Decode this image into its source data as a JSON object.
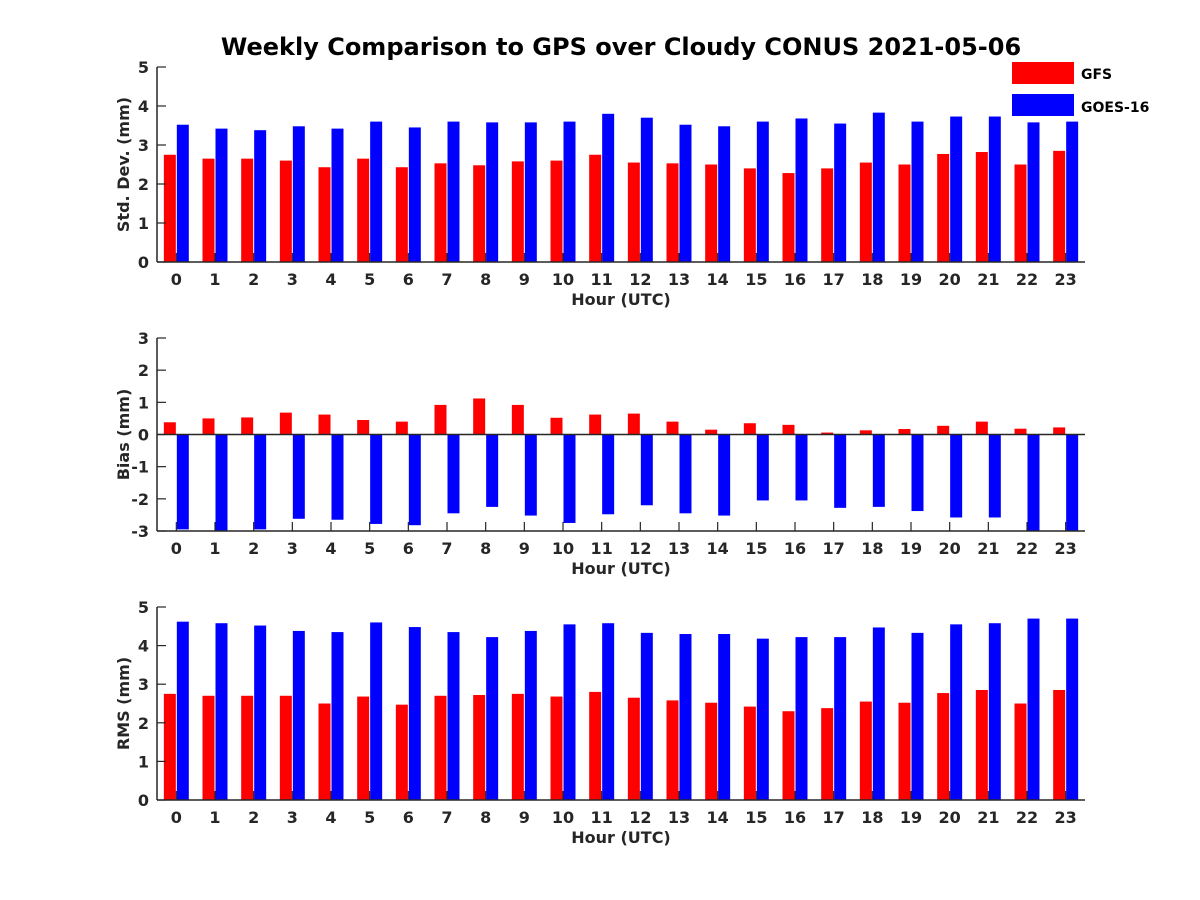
{
  "title": "Weekly Comparison to GPS over Cloudy CONUS 2021-05-06",
  "colors": {
    "GFS": "#ff0000",
    "GOES-16": "#0000ff"
  },
  "legend": {
    "placement": "top-right",
    "entries": [
      "GFS",
      "GOES-16"
    ]
  },
  "chart_data": [
    {
      "type": "bar",
      "categories": [
        "0",
        "1",
        "2",
        "3",
        "4",
        "5",
        "6",
        "7",
        "8",
        "9",
        "10",
        "11",
        "12",
        "13",
        "14",
        "15",
        "16",
        "17",
        "18",
        "19",
        "20",
        "21",
        "22",
        "23"
      ],
      "xlabel": "Hour (UTC)",
      "ylabel": "Std. Dev. (mm)",
      "ylim": [
        0,
        5
      ],
      "yticks": [
        "0",
        "1",
        "2",
        "3",
        "4",
        "5"
      ],
      "series": [
        {
          "name": "GFS",
          "values": [
            2.75,
            2.65,
            2.65,
            2.6,
            2.43,
            2.65,
            2.43,
            2.53,
            2.48,
            2.58,
            2.6,
            2.75,
            2.55,
            2.53,
            2.5,
            2.4,
            2.28,
            2.4,
            2.55,
            2.5,
            2.77,
            2.82,
            2.5,
            2.85
          ]
        },
        {
          "name": "GOES-16",
          "values": [
            3.52,
            3.42,
            3.38,
            3.48,
            3.42,
            3.6,
            3.45,
            3.6,
            3.58,
            3.58,
            3.6,
            3.8,
            3.7,
            3.52,
            3.48,
            3.6,
            3.68,
            3.55,
            3.83,
            3.6,
            3.73,
            3.73,
            3.58,
            3.6
          ]
        }
      ]
    },
    {
      "type": "bar",
      "categories": [
        "0",
        "1",
        "2",
        "3",
        "4",
        "5",
        "6",
        "7",
        "8",
        "9",
        "10",
        "11",
        "12",
        "13",
        "14",
        "15",
        "16",
        "17",
        "18",
        "19",
        "20",
        "21",
        "22",
        "23"
      ],
      "xlabel": "Hour (UTC)",
      "ylabel": "Bias (mm)",
      "ylim": [
        -3,
        3
      ],
      "yticks": [
        "-3",
        "-2",
        "-1",
        "0",
        "1",
        "2",
        "3"
      ],
      "series": [
        {
          "name": "GFS",
          "values": [
            0.38,
            0.5,
            0.53,
            0.68,
            0.62,
            0.45,
            0.4,
            0.92,
            1.12,
            0.92,
            0.52,
            0.62,
            0.65,
            0.4,
            0.15,
            0.35,
            0.3,
            0.06,
            0.13,
            0.17,
            0.27,
            0.4,
            0.18,
            0.22
          ]
        },
        {
          "name": "GOES-16",
          "values": [
            -2.95,
            -3.0,
            -2.95,
            -2.62,
            -2.65,
            -2.78,
            -2.82,
            -2.45,
            -2.25,
            -2.52,
            -2.75,
            -2.48,
            -2.2,
            -2.45,
            -2.52,
            -2.05,
            -2.05,
            -2.28,
            -2.25,
            -2.38,
            -2.58,
            -2.58,
            -3.0,
            -3.0
          ]
        }
      ]
    },
    {
      "type": "bar",
      "categories": [
        "0",
        "1",
        "2",
        "3",
        "4",
        "5",
        "6",
        "7",
        "8",
        "9",
        "10",
        "11",
        "12",
        "13",
        "14",
        "15",
        "16",
        "17",
        "18",
        "19",
        "20",
        "21",
        "22",
        "23"
      ],
      "xlabel": "Hour (UTC)",
      "ylabel": "RMS (mm)",
      "ylim": [
        0,
        5
      ],
      "yticks": [
        "0",
        "1",
        "2",
        "3",
        "4",
        "5"
      ],
      "series": [
        {
          "name": "GFS",
          "values": [
            2.75,
            2.7,
            2.7,
            2.7,
            2.5,
            2.68,
            2.47,
            2.7,
            2.72,
            2.75,
            2.68,
            2.8,
            2.65,
            2.58,
            2.52,
            2.42,
            2.3,
            2.38,
            2.55,
            2.52,
            2.77,
            2.85,
            2.5,
            2.85
          ]
        },
        {
          "name": "GOES-16",
          "values": [
            4.62,
            4.58,
            4.52,
            4.38,
            4.35,
            4.6,
            4.48,
            4.35,
            4.22,
            4.38,
            4.55,
            4.58,
            4.33,
            4.3,
            4.3,
            4.18,
            4.22,
            4.22,
            4.47,
            4.33,
            4.55,
            4.58,
            4.7,
            4.7
          ]
        }
      ]
    }
  ]
}
